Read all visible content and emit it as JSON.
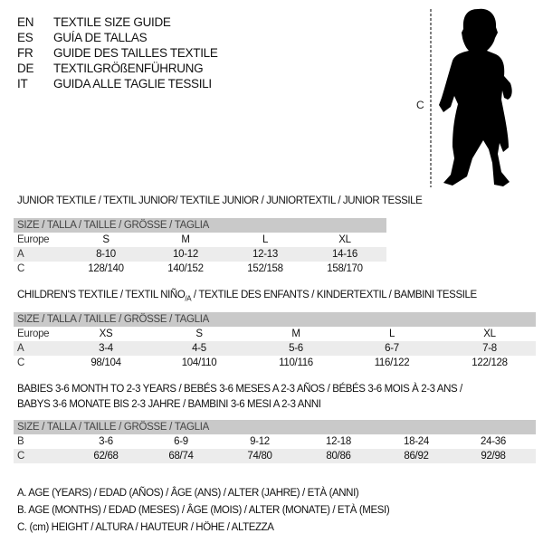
{
  "languages": [
    {
      "code": "EN",
      "title": "TEXTILE SIZE GUIDE"
    },
    {
      "code": "ES",
      "title": "GUÍA DE TALLAS"
    },
    {
      "code": "FR",
      "title": "GUIDE DES TAILLES TEXTILE"
    },
    {
      "code": "DE",
      "title": "TEXTILGRÖßENFÜHRUNG"
    },
    {
      "code": "IT",
      "title": "GUIDA ALLE TAGLIE TESSILI"
    }
  ],
  "figure": {
    "measure_label": "C",
    "icon": "child-silhouette"
  },
  "junior": {
    "title": "JUNIOR TEXTILE / TEXTIL JUNIOR/ TEXTILE JUNIOR / JUNIORTEXTIL / JUNIOR TESSILE",
    "header": "SIZE / TALLA / TAILLE / GRÖSSE / TAGLIA",
    "rows": [
      {
        "label": "Europe",
        "values": [
          "S",
          "M",
          "L",
          "XL"
        ]
      },
      {
        "label": "A",
        "values": [
          "8-10",
          "10-12",
          "12-13",
          "14-16"
        ]
      },
      {
        "label": "C",
        "values": [
          "128/140",
          "140/152",
          "152/158",
          "158/170"
        ]
      }
    ]
  },
  "children": {
    "title_main": "CHILDREN'S TEXTILE / TEXTIL NIÑO",
    "title_sub": "/A",
    "title_rest": " / TEXTILE DES ENFANTS / KINDERTEXTIL / BAMBINI TESSILE",
    "header": "SIZE / TALLA / TAILLE / GRÖSSE / TAGLIA",
    "rows": [
      {
        "label": "Europe",
        "values": [
          "XS",
          "S",
          "M",
          "L",
          "XL"
        ]
      },
      {
        "label": "A",
        "values": [
          "3-4",
          "4-5",
          "5-6",
          "6-7",
          "7-8"
        ]
      },
      {
        "label": "C",
        "values": [
          "98/104",
          "104/110",
          "110/116",
          "116/122",
          "122/128"
        ]
      }
    ]
  },
  "babies": {
    "title_line1": "BABIES 3-6 MONTH TO 2-3 YEARS / BEBÉS 3-6 MESES A 2-3 AÑOS / BÉBÉS 3-6 MOIS À 2-3 ANS /",
    "title_line2": "BABYS 3-6 MONATE BIS 2-3 JAHRE / BAMBINI 3-6 MESI A 2-3 ANNI",
    "header": "SIZE / TALLA / TAILLE / GRÖSSE / TAGLIA",
    "rows": [
      {
        "label": "B",
        "values": [
          "3-6",
          "6-9",
          "9-12",
          "12-18",
          "18-24",
          "24-36"
        ]
      },
      {
        "label": "C",
        "values": [
          "62/68",
          "68/74",
          "74/80",
          "80/86",
          "86/92",
          "92/98"
        ]
      }
    ]
  },
  "legend": [
    "A. AGE (YEARS) / EDAD (AÑOS) / ÂGE (ANS) / ALTER (JAHRE) / ETÀ (ANNI)",
    "B. AGE (MONTHS) / EDAD (MESES) / ÂGE (MOIS) / ALTER (MONATE) / ETÀ (MESI)",
    "C. (cm) HEIGHT / ALTURA / HAUTEUR / HÖHE / ALTEZZA"
  ]
}
